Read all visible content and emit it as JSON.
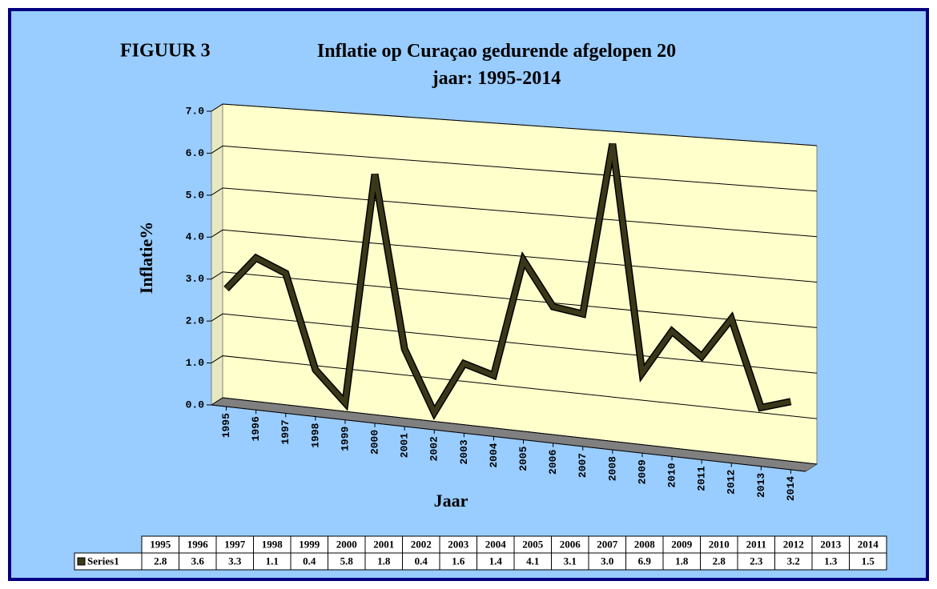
{
  "chart_data": {
    "type": "line3d",
    "figure_label": "FIGUUR 3",
    "title": "Inflatie op Curaçao gedurende afgelopen 20 jaar: 1995-2014",
    "y_label": "Inflatie%",
    "x_label": "Jaar",
    "categories": [
      "1995",
      "1996",
      "1997",
      "1998",
      "1999",
      "2000",
      "2001",
      "2002",
      "2003",
      "2004",
      "2005",
      "2006",
      "2007",
      "2008",
      "2009",
      "2010",
      "2011",
      "2012",
      "2013",
      "2014"
    ],
    "series": [
      {
        "name": "Series1",
        "color": "#3a3818",
        "values": [
          2.8,
          3.6,
          3.3,
          1.1,
          0.4,
          5.8,
          1.8,
          0.4,
          1.6,
          1.4,
          4.1,
          3.1,
          3.0,
          6.9,
          1.8,
          2.8,
          2.3,
          3.2,
          1.3,
          1.5
        ],
        "value_labels": [
          "2.8",
          "3.6",
          "3.3",
          "1.1",
          "0.4",
          "5.8",
          "1.8",
          "0.4",
          "1.6",
          "1.4",
          "4.1",
          "3.1",
          "3.0",
          "6.9",
          "1.8",
          "2.8",
          "2.3",
          "3.2",
          "1.3",
          "1.5"
        ]
      }
    ],
    "ylim": [
      0,
      7
    ],
    "yticks": [
      {
        "value": 0,
        "label": "0.0"
      },
      {
        "value": 1,
        "label": "1.0"
      },
      {
        "value": 2,
        "label": "2.0"
      },
      {
        "value": 3,
        "label": "3.0"
      },
      {
        "value": 4,
        "label": "4.0"
      },
      {
        "value": 5,
        "label": "5.0"
      },
      {
        "value": 6,
        "label": "6.0"
      },
      {
        "value": 7,
        "label": "7.0"
      }
    ],
    "grid": true
  }
}
